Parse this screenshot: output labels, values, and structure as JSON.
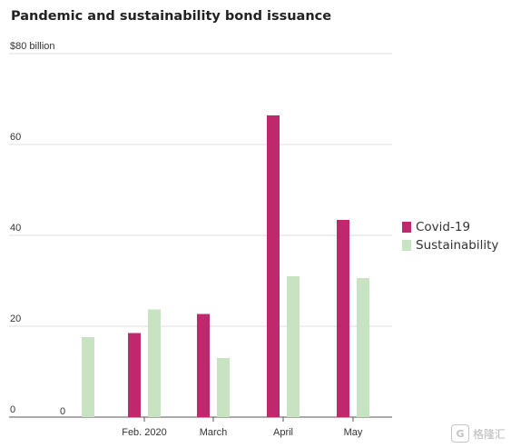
{
  "chart_data": {
    "type": "bar",
    "title": "Pandemic and sustainability bond issuance",
    "ylabel": "",
    "ylim": [
      0,
      80
    ],
    "y_ticks": [
      0,
      20,
      40,
      60,
      80
    ],
    "y_tick_labels": [
      "0",
      "20",
      "40",
      "60",
      "$80 billion"
    ],
    "categories": [
      "",
      "Feb. 2020",
      "March",
      "April",
      "May"
    ],
    "series": [
      {
        "name": "Covid-19",
        "color": "#c0286e",
        "values": [
          0,
          18.5,
          22.7,
          66.4,
          43.4
        ]
      },
      {
        "name": "Sustainability",
        "color": "#c8e3c1",
        "values": [
          17.6,
          23.7,
          13.0,
          31.0,
          30.6
        ]
      }
    ],
    "data_labels": [
      "0"
    ],
    "grid": true,
    "legend_position": "right"
  },
  "watermark": {
    "text": "格隆汇",
    "mark": "G"
  }
}
